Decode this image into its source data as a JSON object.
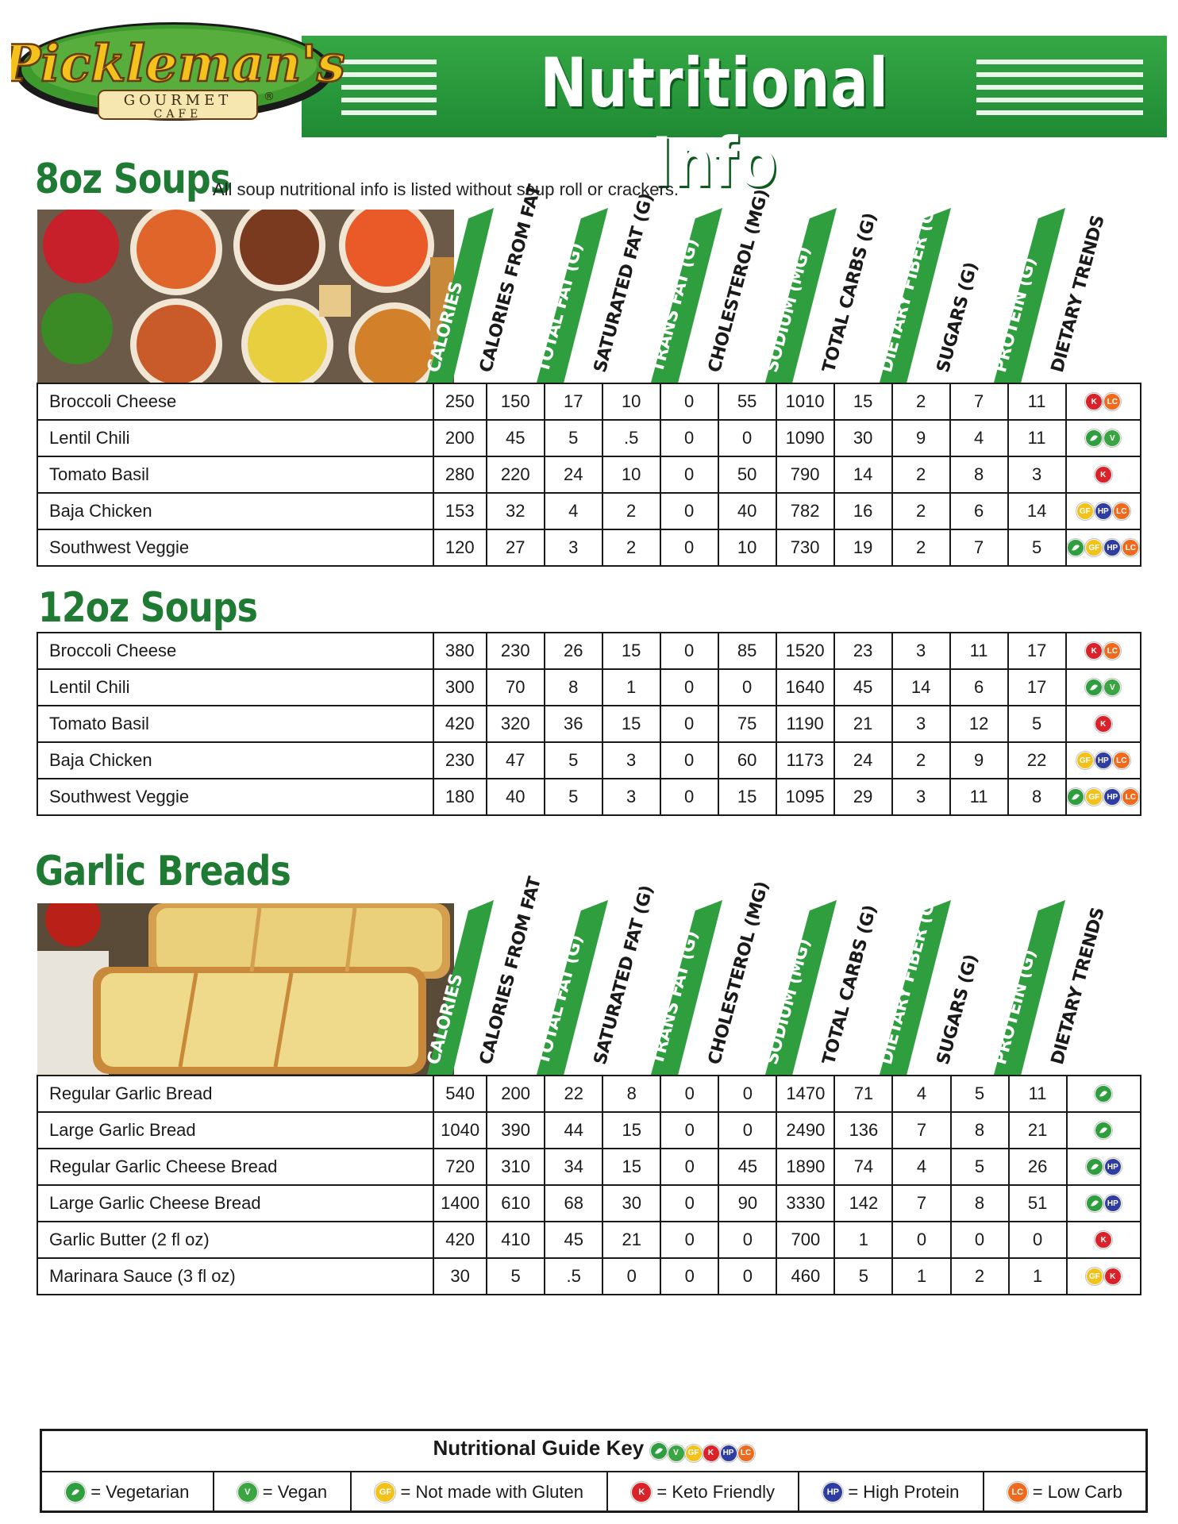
{
  "header": {
    "logo_script": "Pickleman's",
    "logo_sub": "GOURMET",
    "logo_sub2": "CAFE",
    "logo_reg": "®",
    "title": "Nutritional Info"
  },
  "columns": [
    "Calories",
    "Calories From Fat",
    "Total Fat (g)",
    "Saturated Fat (g)",
    "Trans Fat (g)",
    "Cholesterol (mg)",
    "Sodium (mg)",
    "Total Carbs (g)",
    "Dietary Fiber (g)",
    "Sugars (g)",
    "Protein (g)",
    "Dietary Trends"
  ],
  "soups8": {
    "title": "8oz Soups",
    "note": "All soup nutritional info is listed without soup roll or crackers.",
    "rows": [
      {
        "name": "Broccoli Cheese",
        "values": [
          "250",
          "150",
          "17",
          "10",
          "0",
          "55",
          "1010",
          "15",
          "2",
          "7",
          "11"
        ],
        "trends": [
          "k",
          "lc"
        ]
      },
      {
        "name": "Lentil Chili",
        "values": [
          "200",
          "45",
          "5",
          ".5",
          "0",
          "0",
          "1090",
          "30",
          "9",
          "4",
          "11"
        ],
        "trends": [
          "veg",
          "vgn"
        ]
      },
      {
        "name": "Tomato Basil",
        "values": [
          "280",
          "220",
          "24",
          "10",
          "0",
          "50",
          "790",
          "14",
          "2",
          "8",
          "3"
        ],
        "trends": [
          "k"
        ]
      },
      {
        "name": "Baja Chicken",
        "values": [
          "153",
          "32",
          "4",
          "2",
          "0",
          "40",
          "782",
          "16",
          "2",
          "6",
          "14"
        ],
        "trends": [
          "gf",
          "hp",
          "lc"
        ]
      },
      {
        "name": "Southwest Veggie",
        "values": [
          "120",
          "27",
          "3",
          "2",
          "0",
          "10",
          "730",
          "19",
          "2",
          "7",
          "5"
        ],
        "trends": [
          "veg",
          "gf",
          "hp",
          "lc"
        ]
      }
    ]
  },
  "soups12": {
    "title": "12oz Soups",
    "rows": [
      {
        "name": "Broccoli Cheese",
        "values": [
          "380",
          "230",
          "26",
          "15",
          "0",
          "85",
          "1520",
          "23",
          "3",
          "11",
          "17"
        ],
        "trends": [
          "k",
          "lc"
        ]
      },
      {
        "name": "Lentil Chili",
        "values": [
          "300",
          "70",
          "8",
          "1",
          "0",
          "0",
          "1640",
          "45",
          "14",
          "6",
          "17"
        ],
        "trends": [
          "veg",
          "vgn"
        ]
      },
      {
        "name": "Tomato Basil",
        "values": [
          "420",
          "320",
          "36",
          "15",
          "0",
          "75",
          "1190",
          "21",
          "3",
          "12",
          "5"
        ],
        "trends": [
          "k"
        ]
      },
      {
        "name": "Baja Chicken",
        "values": [
          "230",
          "47",
          "5",
          "3",
          "0",
          "60",
          "1173",
          "24",
          "2",
          "9",
          "22"
        ],
        "trends": [
          "gf",
          "hp",
          "lc"
        ]
      },
      {
        "name": "Southwest Veggie",
        "values": [
          "180",
          "40",
          "5",
          "3",
          "0",
          "15",
          "1095",
          "29",
          "3",
          "11",
          "8"
        ],
        "trends": [
          "veg",
          "gf",
          "hp",
          "lc"
        ]
      }
    ]
  },
  "breads": {
    "title": "Garlic Breads",
    "rows": [
      {
        "name": "Regular Garlic Bread",
        "values": [
          "540",
          "200",
          "22",
          "8",
          "0",
          "0",
          "1470",
          "71",
          "4",
          "5",
          "11"
        ],
        "trends": [
          "veg"
        ]
      },
      {
        "name": "Large Garlic Bread",
        "values": [
          "1040",
          "390",
          "44",
          "15",
          "0",
          "0",
          "2490",
          "136",
          "7",
          "8",
          "21"
        ],
        "trends": [
          "veg"
        ]
      },
      {
        "name": "Regular Garlic Cheese Bread",
        "values": [
          "720",
          "310",
          "34",
          "15",
          "0",
          "45",
          "1890",
          "74",
          "4",
          "5",
          "26"
        ],
        "trends": [
          "veg",
          "hp"
        ]
      },
      {
        "name": "Large Garlic Cheese Bread",
        "values": [
          "1400",
          "610",
          "68",
          "30",
          "0",
          "90",
          "3330",
          "142",
          "7",
          "8",
          "51"
        ],
        "trends": [
          "veg",
          "hp"
        ]
      },
      {
        "name": "Garlic Butter (2 fl oz)",
        "values": [
          "420",
          "410",
          "45",
          "21",
          "0",
          "0",
          "700",
          "1",
          "0",
          "0",
          "0"
        ],
        "trends": [
          "k"
        ]
      },
      {
        "name": "Marinara Sauce (3 fl oz)",
        "values": [
          "30",
          "5",
          ".5",
          "0",
          "0",
          "0",
          "460",
          "5",
          "1",
          "2",
          "1"
        ],
        "trends": [
          "gf",
          "k"
        ]
      }
    ]
  },
  "badge_text": {
    "veg": "",
    "vgn": "V",
    "gf": "GF",
    "k": "K",
    "hp": "HP",
    "lc": "LC"
  },
  "key": {
    "title": "Nutritional Guide Key",
    "title_badges": [
      "veg",
      "vgn",
      "gf",
      "k",
      "hp",
      "lc"
    ],
    "items": [
      {
        "badge": "veg",
        "label": "= Vegetarian"
      },
      {
        "badge": "vgn",
        "label": "= Vegan"
      },
      {
        "badge": "gf",
        "label": "= Not made with Gluten"
      },
      {
        "badge": "k",
        "label": "= Keto Friendly"
      },
      {
        "badge": "hp",
        "label": "= High Protein"
      },
      {
        "badge": "lc",
        "label": "= Low Carb"
      }
    ]
  },
  "colors": {
    "green": "#2e9e3e",
    "dark_green": "#1f7a33",
    "keto": "#d9222a",
    "gf": "#f2c21a",
    "hp": "#2f3da0",
    "lc": "#ef6a1c"
  }
}
